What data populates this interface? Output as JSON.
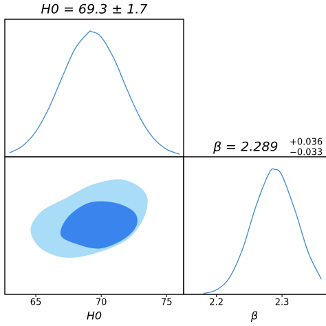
{
  "chart_data": [
    {
      "type": "line",
      "title": "H0 = 69.3 ± 1.7",
      "color": "#4a8fd6",
      "x": [
        63,
        64,
        65,
        66,
        67,
        68,
        69,
        69.3,
        70,
        71,
        72,
        73,
        74,
        75,
        76
      ],
      "values": [
        0.032,
        0.088,
        0.202,
        0.39,
        0.633,
        0.864,
        0.992,
        1,
        0.958,
        0.779,
        0.532,
        0.306,
        0.148,
        0.06,
        0.021
      ],
      "xlim": [
        62.63,
        76.3
      ],
      "ylim": [
        0,
        1.1
      ]
    },
    {
      "type": "contour",
      "xlabel": "H0",
      "xlim": [
        62.63,
        76.3
      ],
      "ylim": [
        2.13,
        2.43
      ],
      "xticks": [
        65,
        70,
        75
      ],
      "series": [
        {
          "color": "#a8dcf7",
          "x": [
            64.6,
            65.4,
            67.3,
            69.4,
            71.7,
            73.4,
            73.3,
            72.0,
            69.6,
            67.3,
            65.4
          ],
          "values": [
            2.27,
            2.31,
            2.34,
            2.37,
            2.38,
            2.35,
            2.3,
            2.25,
            2.22,
            2.21,
            2.23
          ]
        },
        {
          "color": "#3a84ee",
          "x": [
            66.9,
            67.5,
            69.1,
            71.0,
            72.5,
            72.7,
            71.7,
            69.9,
            68.1
          ],
          "values": [
            2.26,
            2.3,
            2.33,
            2.33,
            2.31,
            2.28,
            2.25,
            2.23,
            2.24
          ]
        }
      ]
    },
    {
      "type": "line",
      "title": "β = 2.289",
      "title_sup": "+0.036",
      "title_sub": "−0.033",
      "xlabel": "β",
      "color": "#4a8fd6",
      "x": [
        2.18,
        2.2,
        2.22,
        2.24,
        2.26,
        2.28,
        2.289,
        2.3,
        2.32,
        2.34,
        2.36
      ],
      "values": [
        0.007,
        0.036,
        0.135,
        0.365,
        0.702,
        0.967,
        1,
        0.95,
        0.668,
        0.335,
        0.12
      ],
      "xlim": [
        2.15,
        2.367
      ],
      "ylim": [
        0,
        1.1
      ],
      "xticks": [
        2.2,
        2.3
      ]
    }
  ]
}
